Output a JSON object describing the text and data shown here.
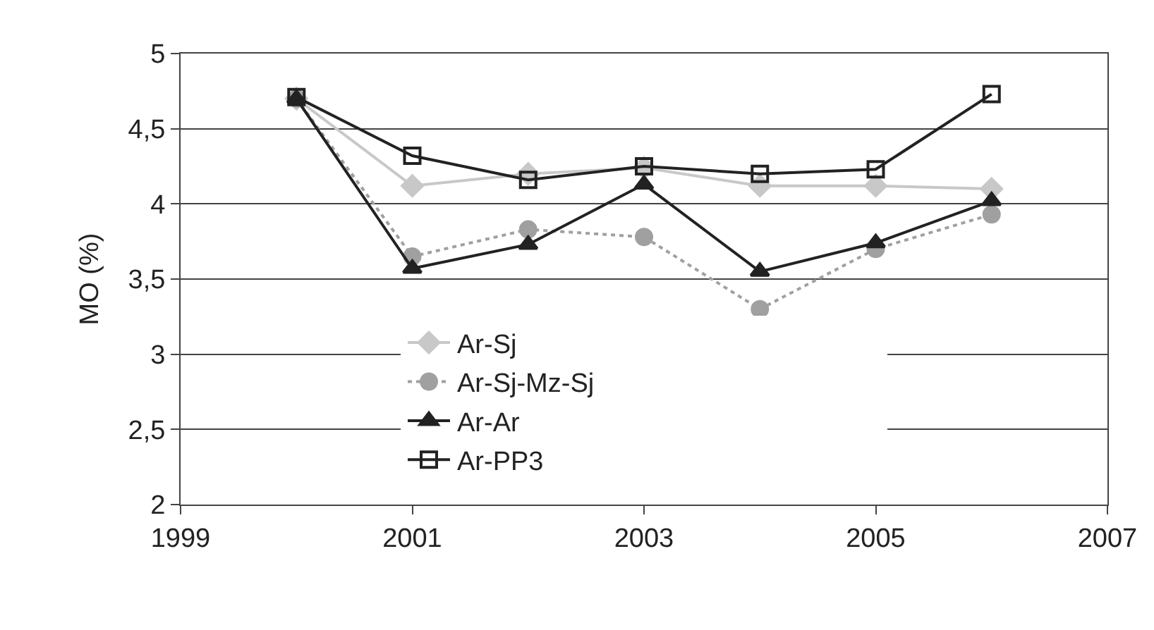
{
  "chart_data": {
    "type": "line",
    "ylabel": "MO (%)",
    "x": [
      2000,
      2001,
      2002,
      2003,
      2004,
      2005,
      2006
    ],
    "series": [
      {
        "name": "Ar-Sj",
        "color": "#c8c8c8",
        "marker": "diamond",
        "line_style": "solid",
        "values": [
          4.7,
          4.12,
          4.2,
          4.24,
          4.12,
          4.12,
          4.1
        ]
      },
      {
        "name": "Ar-Sj-Mz-Sj",
        "color": "#a0a0a0",
        "marker": "circle",
        "line_style": "dotted",
        "values": [
          4.7,
          3.65,
          3.83,
          3.78,
          3.3,
          3.7,
          3.93
        ]
      },
      {
        "name": "Ar-Ar",
        "color": "#222222",
        "marker": "triangle",
        "line_style": "solid",
        "values": [
          4.7,
          3.57,
          3.73,
          4.13,
          3.55,
          3.74,
          4.02
        ]
      },
      {
        "name": "Ar-PP3",
        "color": "#222222",
        "marker": "square",
        "line_style": "solid",
        "values": [
          4.71,
          4.32,
          4.16,
          4.25,
          4.2,
          4.23,
          4.73
        ]
      }
    ],
    "xlim": [
      1999,
      2007
    ],
    "xticks": [
      1999,
      2001,
      2003,
      2005,
      2007
    ],
    "ylim": [
      2,
      5
    ],
    "yticks": [
      2,
      {
        "value": 2.5,
        "label": "2,5"
      },
      3,
      {
        "value": 3.5,
        "label": "3,5"
      },
      4,
      {
        "value": 4.5,
        "label": "4,5"
      },
      5
    ],
    "grid": "y",
    "legend": "bottom"
  }
}
